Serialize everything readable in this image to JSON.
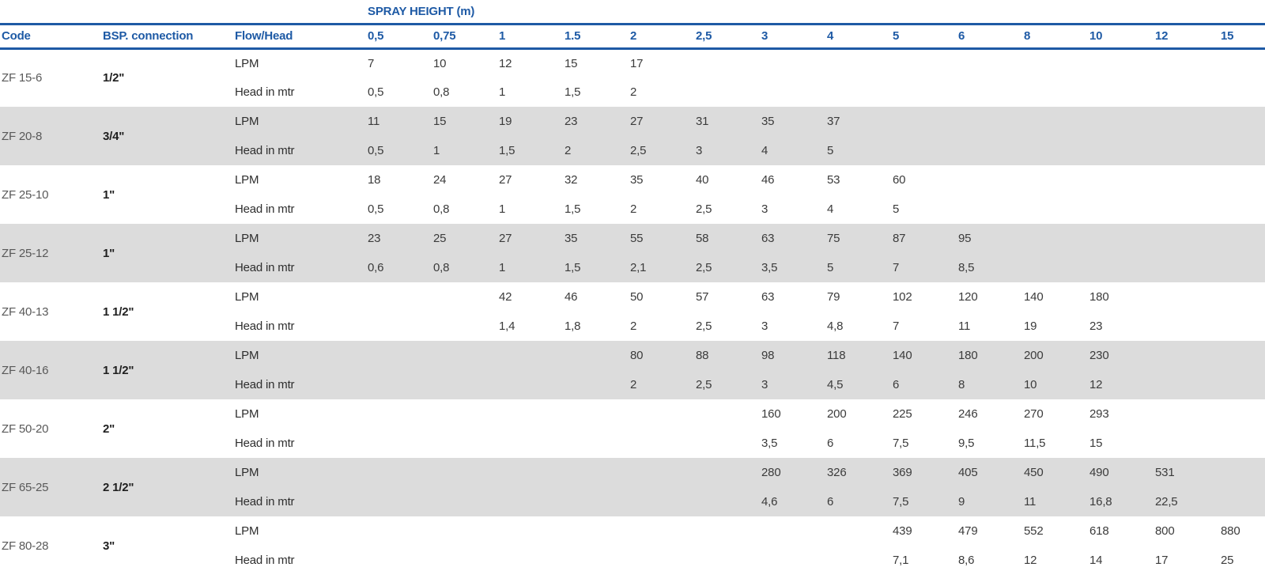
{
  "table": {
    "title": "SPRAY HEIGHT (m)",
    "columns": {
      "code": "Code",
      "bsp": "BSP. connection",
      "flow_head": "Flow/Head",
      "heights": [
        "0,5",
        "0,75",
        "1",
        "1.5",
        "2",
        "2,5",
        "3",
        "4",
        "5",
        "6",
        "8",
        "10",
        "12",
        "15"
      ]
    },
    "row_labels": {
      "lpm": "LPM",
      "head": "Head in mtr"
    },
    "rows": [
      {
        "code": "ZF 15-6",
        "bsp": "1/2\"",
        "lpm": [
          "7",
          "10",
          "12",
          "15",
          "17",
          "",
          "",
          "",
          "",
          "",
          "",
          "",
          "",
          ""
        ],
        "head": [
          "0,5",
          "0,8",
          "1",
          "1,5",
          "2",
          "",
          "",
          "",
          "",
          "",
          "",
          "",
          "",
          ""
        ]
      },
      {
        "code": "ZF 20-8",
        "bsp": "3/4\"",
        "lpm": [
          "11",
          "15",
          "19",
          "23",
          "27",
          "31",
          "35",
          "37",
          "",
          "",
          "",
          "",
          "",
          ""
        ],
        "head": [
          "0,5",
          "1",
          "1,5",
          "2",
          "2,5",
          "3",
          "4",
          "5",
          "",
          "",
          "",
          "",
          "",
          ""
        ]
      },
      {
        "code": "ZF 25-10",
        "bsp": "1\"",
        "lpm": [
          "18",
          "24",
          "27",
          "32",
          "35",
          "40",
          "46",
          "53",
          "60",
          "",
          "",
          "",
          "",
          ""
        ],
        "head": [
          "0,5",
          "0,8",
          "1",
          "1,5",
          "2",
          "2,5",
          "3",
          "4",
          "5",
          "",
          "",
          "",
          "",
          ""
        ]
      },
      {
        "code": "ZF 25-12",
        "bsp": "1\"",
        "lpm": [
          "23",
          "25",
          "27",
          "35",
          "55",
          "58",
          "63",
          "75",
          "87",
          "95",
          "",
          "",
          "",
          ""
        ],
        "head": [
          "0,6",
          "0,8",
          "1",
          "1,5",
          "2,1",
          "2,5",
          "3,5",
          "5",
          "7",
          "8,5",
          "",
          "",
          "",
          ""
        ]
      },
      {
        "code": "ZF 40-13",
        "bsp": "1 1/2\"",
        "lpm": [
          "",
          "",
          "42",
          "46",
          "50",
          "57",
          "63",
          "79",
          "102",
          "120",
          "140",
          "180",
          "",
          ""
        ],
        "head": [
          "",
          "",
          "1,4",
          "1,8",
          "2",
          "2,5",
          "3",
          "4,8",
          "7",
          "11",
          "19",
          "23",
          "",
          ""
        ]
      },
      {
        "code": "ZF 40-16",
        "bsp": "1 1/2\"",
        "lpm": [
          "",
          "",
          "",
          "",
          "80",
          "88",
          "98",
          "118",
          "140",
          "180",
          "200",
          "230",
          "",
          ""
        ],
        "head": [
          "",
          "",
          "",
          "",
          "2",
          "2,5",
          "3",
          "4,5",
          "6",
          "8",
          "10",
          "12",
          "",
          ""
        ]
      },
      {
        "code": "ZF 50-20",
        "bsp": "2\"",
        "lpm": [
          "",
          "",
          "",
          "",
          "",
          "",
          "160",
          "200",
          "225",
          "246",
          "270",
          "293",
          "",
          ""
        ],
        "head": [
          "",
          "",
          "",
          "",
          "",
          "",
          "3,5",
          "6",
          "7,5",
          "9,5",
          "11,5",
          "15",
          "",
          ""
        ]
      },
      {
        "code": "ZF 65-25",
        "bsp": "2 1/2\"",
        "lpm": [
          "",
          "",
          "",
          "",
          "",
          "",
          "280",
          "326",
          "369",
          "405",
          "450",
          "490",
          "531",
          ""
        ],
        "head": [
          "",
          "",
          "",
          "",
          "",
          "",
          "4,6",
          "6",
          "7,5",
          "9",
          "11",
          "16,8",
          "22,5",
          ""
        ]
      },
      {
        "code": "ZF 80-28",
        "bsp": "3\"",
        "lpm": [
          "",
          "",
          "",
          "",
          "",
          "",
          "",
          "",
          "439",
          "479",
          "552",
          "618",
          "800",
          "880"
        ],
        "head": [
          "",
          "",
          "",
          "",
          "",
          "",
          "",
          "",
          "7,1",
          "8,6",
          "12",
          "14",
          "17",
          "25"
        ]
      }
    ],
    "colors": {
      "accent_blue": "#1e5aa5",
      "row_alt_gray": "#dcdcdc",
      "data_text": "#3b3b3b"
    }
  }
}
